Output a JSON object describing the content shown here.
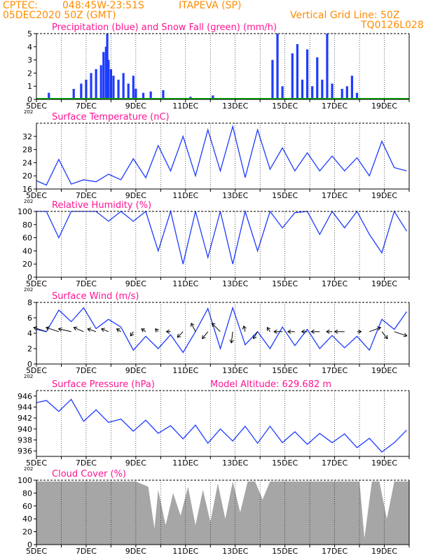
{
  "header": {
    "center": "CPTEC:",
    "coords": "048:45W-23:51S",
    "city": "ITAPEVA (SP)",
    "date": "05DEC2020 50Z (GMT)",
    "grid_line": "Vertical Grid Line: 50Z",
    "code": "TQ0126L028"
  },
  "colors": {
    "header": "#ff8c00",
    "title": "#ff1493",
    "line": "#1e3cff",
    "bar": "#1e3cff",
    "snow": "#00b000",
    "cloud": "#a6a6a6",
    "arrow": "#000000",
    "grid": "#000000"
  },
  "x_axis": {
    "tick_labels": [
      "5DEC",
      "7DEC",
      "9DEC",
      "11DEC",
      "13DEC",
      "15DEC",
      "17DEC",
      "19DEC"
    ],
    "year_stub": "202"
  },
  "chart_data": [
    {
      "id": "precip",
      "type": "bar",
      "title": "Precipitation (blue) and Snow Fall (green) (mm/h)",
      "ylim": [
        0,
        5
      ],
      "yticks": [
        0,
        1,
        2,
        3,
        4,
        5
      ],
      "x": [
        5.5,
        6.5,
        6.8,
        7.0,
        7.2,
        7.4,
        7.6,
        7.7,
        7.8,
        7.85,
        7.9,
        8.0,
        8.1,
        8.3,
        8.5,
        8.7,
        8.9,
        9.0,
        9.3,
        9.6,
        10.1,
        11.2,
        12.1,
        14.5,
        14.7,
        14.9,
        15.3,
        15.5,
        15.7,
        15.9,
        16.1,
        16.3,
        16.5,
        16.7,
        16.9,
        17.3,
        17.5,
        17.7,
        17.9
      ],
      "values": [
        0.5,
        0.8,
        1.2,
        1.5,
        2.0,
        2.3,
        2.6,
        3.6,
        4.0,
        5.0,
        3.0,
        2.3,
        1.8,
        1.5,
        2.0,
        1.2,
        1.8,
        0.8,
        0.5,
        0.6,
        0.7,
        0.2,
        0.3,
        3.0,
        5.0,
        1.0,
        3.5,
        4.2,
        1.5,
        3.8,
        1.0,
        3.2,
        1.5,
        5.0,
        1.2,
        0.8,
        1.0,
        1.8,
        0.5
      ],
      "snow": 0
    },
    {
      "id": "temp",
      "type": "line",
      "title": "Surface Temperature (nC)",
      "ylim": [
        16,
        36
      ],
      "yticks": [
        16,
        20,
        24,
        28,
        32
      ],
      "x": [
        5.0,
        5.4,
        5.9,
        6.4,
        6.9,
        7.4,
        7.9,
        8.4,
        8.9,
        9.4,
        9.9,
        10.4,
        10.9,
        11.4,
        11.9,
        12.4,
        12.9,
        13.4,
        13.9,
        14.4,
        14.9,
        15.4,
        15.9,
        16.4,
        16.9,
        17.4,
        17.9,
        18.4,
        18.9,
        19.4,
        19.9
      ],
      "values": [
        18.5,
        17.2,
        25,
        17.5,
        18.8,
        18.2,
        20.5,
        18.8,
        25.2,
        19.4,
        29.2,
        21.5,
        32,
        20,
        34,
        21.5,
        35,
        19.5,
        34,
        22,
        28.5,
        21.5,
        27,
        21.5,
        26,
        21.5,
        25.5,
        20,
        30.5,
        22.5,
        21.5
      ]
    },
    {
      "id": "rh",
      "type": "line",
      "title": "Relative Humidity (%)",
      "ylim": [
        0,
        100
      ],
      "yticks": [
        0,
        20,
        40,
        60,
        80,
        100
      ],
      "x": [
        5.0,
        5.4,
        5.9,
        6.4,
        6.9,
        7.4,
        7.9,
        8.4,
        8.9,
        9.4,
        9.9,
        10.4,
        10.9,
        11.4,
        11.9,
        12.4,
        12.9,
        13.4,
        13.9,
        14.4,
        14.9,
        15.4,
        15.9,
        16.4,
        16.9,
        17.4,
        17.9,
        18.4,
        18.9,
        19.4,
        19.9
      ],
      "values": [
        100,
        100,
        60,
        100,
        100,
        100,
        85,
        100,
        85,
        100,
        40,
        100,
        20,
        100,
        30,
        100,
        20,
        100,
        40,
        100,
        75,
        98,
        100,
        65,
        100,
        75,
        100,
        65,
        37,
        100,
        70
      ]
    },
    {
      "id": "wind",
      "type": "line",
      "title": "Surface Wind (m/s)",
      "ylim": [
        0,
        8
      ],
      "yticks": [
        0,
        2,
        4,
        6,
        8
      ],
      "x": [
        5.0,
        5.4,
        5.9,
        6.4,
        6.9,
        7.4,
        7.9,
        8.4,
        8.9,
        9.4,
        9.9,
        10.4,
        10.9,
        11.4,
        11.9,
        12.4,
        12.9,
        13.4,
        13.9,
        14.4,
        14.9,
        15.4,
        15.9,
        16.4,
        16.9,
        17.4,
        17.9,
        18.4,
        18.9,
        19.4,
        19.9
      ],
      "values": [
        4.5,
        4.2,
        7.0,
        5.5,
        7.3,
        4.6,
        5.8,
        4.8,
        1.8,
        3.6,
        2.0,
        3.8,
        1.5,
        4.2,
        7.2,
        2.0,
        7.3,
        2.5,
        4.2,
        2.0,
        4.8,
        2.4,
        4.5,
        2.0,
        3.7,
        2.1,
        3.6,
        1.8,
        5.8,
        4.5,
        6.8
      ],
      "arrow_x": [
        5.4,
        5.9,
        6.4,
        6.9,
        7.4,
        7.9,
        8.4,
        8.9,
        9.4,
        9.9,
        10.4,
        10.9,
        11.4,
        11.9,
        12.4,
        12.9,
        13.4,
        13.9,
        14.4,
        14.9,
        15.4,
        15.9,
        16.4,
        16.9,
        17.4,
        17.9,
        18.4,
        18.9,
        19.4
      ],
      "arrow_u": [
        -0.9,
        -0.9,
        -0.9,
        -0.7,
        -0.6,
        -0.5,
        -0.3,
        -0.2,
        -0.3,
        -0.2,
        -0.3,
        -0.4,
        -0.3,
        -0.4,
        -0.6,
        -0.1,
        -0.1,
        -0.3,
        -0.2,
        -0.6,
        -0.5,
        -0.4,
        -0.6,
        -0.4,
        -0.7,
        0.3,
        0.8,
        0.4,
        0.9
      ],
      "arrow_v": [
        0.3,
        0.3,
        0.2,
        0.3,
        0.2,
        0.2,
        0.2,
        -0.3,
        0.2,
        0.2,
        0.0,
        -0.4,
        0.6,
        -0.5,
        0.6,
        -0.8,
        0.4,
        -0.5,
        0.3,
        0.0,
        0.0,
        0.0,
        0.0,
        0.0,
        0.0,
        0.0,
        0.3,
        -0.5,
        -0.3
      ]
    },
    {
      "id": "pres",
      "type": "line",
      "title": "Surface Pressure (hPa)",
      "altitude_label": "Model Altitude: 629.682 m",
      "ylim": [
        935,
        947
      ],
      "yticks": [
        936,
        938,
        940,
        942,
        944,
        946
      ],
      "x": [
        5.0,
        5.4,
        5.9,
        6.4,
        6.9,
        7.4,
        7.9,
        8.4,
        8.9,
        9.4,
        9.9,
        10.4,
        10.9,
        11.4,
        11.9,
        12.4,
        12.9,
        13.4,
        13.9,
        14.4,
        14.9,
        15.4,
        15.9,
        16.4,
        16.9,
        17.4,
        17.9,
        18.4,
        18.9,
        19.4,
        19.9
      ],
      "values": [
        944.8,
        945.2,
        943.2,
        945.4,
        941.4,
        943.5,
        941.2,
        941.8,
        939.6,
        941.6,
        939.2,
        940.6,
        938.2,
        940.7,
        937.4,
        940.0,
        937.8,
        940.5,
        937.4,
        940.5,
        937.5,
        939.5,
        937.2,
        939.2,
        937.5,
        939.1,
        936.6,
        938.3,
        935.8,
        937.5,
        939.8
      ]
    },
    {
      "id": "cloud",
      "type": "area",
      "title": "Cloud Cover (%)",
      "ylim": [
        0,
        100
      ],
      "yticks": [
        0,
        20,
        40,
        60,
        80,
        100
      ],
      "x": [
        5.0,
        5.5,
        6.0,
        6.5,
        7.0,
        7.5,
        8.0,
        8.5,
        9.0,
        9.5,
        9.75,
        9.9,
        10.2,
        10.5,
        10.8,
        11.1,
        11.4,
        11.7,
        12.0,
        12.3,
        12.6,
        12.9,
        13.2,
        13.5,
        13.8,
        14.1,
        14.4,
        14.7,
        15.0,
        15.5,
        16.0,
        16.5,
        17.0,
        17.5,
        18.0,
        18.2,
        18.5,
        18.8,
        19.1,
        19.4,
        19.7,
        20.0
      ],
      "values": [
        98,
        98,
        98,
        98,
        98,
        98,
        98,
        98,
        98,
        90,
        25,
        85,
        30,
        80,
        45,
        90,
        30,
        85,
        35,
        95,
        40,
        98,
        50,
        98,
        98,
        70,
        98,
        98,
        98,
        98,
        98,
        98,
        98,
        98,
        98,
        10,
        98,
        98,
        40,
        98,
        98,
        98
      ]
    }
  ]
}
